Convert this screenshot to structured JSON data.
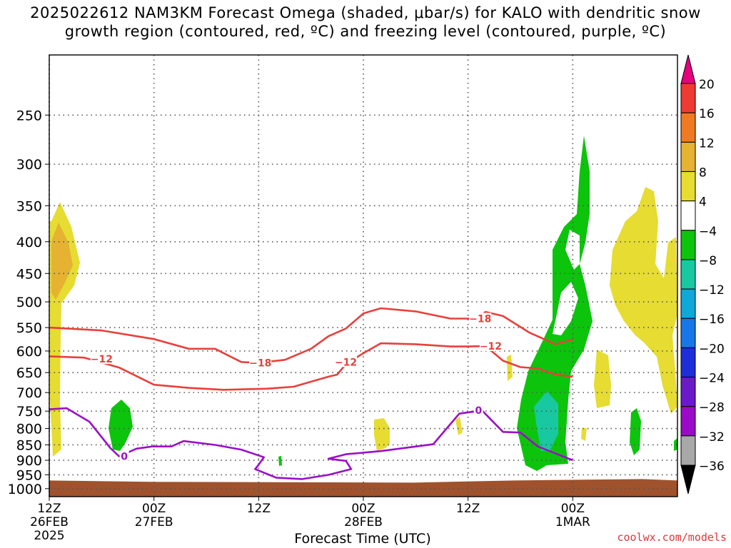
{
  "header": {
    "title_line1": "2025022612 NAM3KM Forecast Omega (shaded, μbar/s) for KALO with dendritic snow",
    "title_line2": "growth region (contoured, red, ºC) and freezing level (contoured, purple, ºC)"
  },
  "footer": {
    "credit": "coolwx.com/models"
  },
  "chart_data": {
    "type": "heatmap",
    "title": "2025022612 NAM3KM Forecast Omega (shaded, μbar/s) for KALO with dendritic snow growth region (contoured, red, ºC) and freezing level (contoured, purple, ºC)",
    "xlabel": "Forecast Time (UTC)",
    "ylabel": "",
    "x_unit": "forecast hour",
    "xlim": [
      0,
      36
    ],
    "ylim": [
      1030,
      200
    ],
    "y_scale": "log",
    "x_ticks": [
      {
        "x": 0,
        "line1": "12Z",
        "line2": "26FEB",
        "line3": "2025"
      },
      {
        "x": 6,
        "line1": "00Z",
        "line2": "27FEB",
        "line3": ""
      },
      {
        "x": 12,
        "line1": "12Z",
        "line2": "",
        "line3": ""
      },
      {
        "x": 18,
        "line1": "00Z",
        "line2": "28FEB",
        "line3": ""
      },
      {
        "x": 24,
        "line1": "12Z",
        "line2": "",
        "line3": ""
      },
      {
        "x": 30,
        "line1": "00Z",
        "line2": "1MAR",
        "line3": ""
      }
    ],
    "y_ticks": [
      250,
      300,
      350,
      400,
      450,
      500,
      550,
      600,
      650,
      700,
      750,
      800,
      850,
      900,
      950,
      1000
    ],
    "grid": true,
    "colorbar": {
      "labels": [
        "20",
        "16",
        "12",
        "8",
        "4",
        "−4",
        "−8",
        "−12",
        "−16",
        "−20",
        "−24",
        "−28",
        "−32",
        "−36"
      ],
      "bands": [
        {
          "color": "#e6007e"
        },
        {
          "color": "#ee3a32"
        },
        {
          "color": "#f07a22"
        },
        {
          "color": "#e5b232"
        },
        {
          "color": "#e6dc32"
        },
        {
          "color": "#ffffff"
        },
        {
          "color": "#0cc40c"
        },
        {
          "color": "#18c8a0"
        },
        {
          "color": "#10a8d8"
        },
        {
          "color": "#1877e8"
        },
        {
          "color": "#1e2ed8"
        },
        {
          "color": "#6a1ac8"
        },
        {
          "color": "#9a0ac8"
        },
        {
          "color": "#a8a8a8"
        },
        {
          "color": "#000000"
        }
      ]
    },
    "terrain": {
      "color": "#a0522d",
      "surface_pressure": 970
    },
    "contours": [
      {
        "name": "-18",
        "color": "#e8403c",
        "label": "−18",
        "label_at": [
          12.1
        ],
        "points": [
          [
            0,
            550
          ],
          [
            3,
            556
          ],
          [
            6,
            574
          ],
          [
            8,
            595
          ],
          [
            9.5,
            595
          ],
          [
            11,
            625
          ],
          [
            12,
            627
          ],
          [
            13.5,
            620
          ],
          [
            15,
            595
          ],
          [
            16,
            568
          ],
          [
            17,
            552
          ],
          [
            18,
            522
          ],
          [
            19,
            512
          ],
          [
            21,
            518
          ],
          [
            23,
            532
          ],
          [
            24.5,
            532
          ],
          [
            25,
            519
          ],
          [
            26,
            527
          ],
          [
            27.5,
            560
          ],
          [
            29,
            585
          ],
          [
            30,
            575
          ]
        ],
        "labels": [
          {
            "text": "−18",
            "at": [
              12.1,
              627
            ]
          },
          {
            "text": "−18",
            "at": [
              24.7,
              532
            ]
          }
        ]
      },
      {
        "name": "-12",
        "color": "#e8403c",
        "points": [
          [
            0,
            612
          ],
          [
            2,
            615
          ],
          [
            4,
            638
          ],
          [
            6,
            680
          ],
          [
            8,
            688
          ],
          [
            10,
            693
          ],
          [
            12.5,
            690
          ],
          [
            14,
            685
          ],
          [
            16,
            660
          ],
          [
            16.5,
            655
          ],
          [
            17,
            630
          ],
          [
            18,
            605
          ],
          [
            19,
            583
          ],
          [
            21,
            585
          ],
          [
            23,
            590
          ],
          [
            24,
            590
          ],
          [
            25,
            589
          ],
          [
            26,
            622
          ],
          [
            27,
            637
          ],
          [
            28,
            640
          ],
          [
            29,
            655
          ],
          [
            30,
            660
          ]
        ],
        "labels": [
          {
            "text": "−12",
            "at": [
              3,
              618
            ]
          },
          {
            "text": "−12",
            "at": [
              17,
              625
            ]
          },
          {
            "text": "−12",
            "at": [
              25.3,
              589
            ]
          }
        ]
      },
      {
        "name": "0",
        "color": "#9a10c8",
        "points": [
          [
            0,
            745
          ],
          [
            1,
            742
          ],
          [
            2.3,
            780
          ],
          [
            3.5,
            860
          ],
          [
            4,
            887
          ],
          [
            5,
            862
          ],
          [
            5.9,
            855
          ],
          [
            7,
            855
          ],
          [
            7.7,
            838
          ],
          [
            9.5,
            850
          ],
          [
            11,
            865
          ],
          [
            12.3,
            890
          ],
          [
            12,
            915
          ],
          [
            11.8,
            930
          ],
          [
            13,
            960
          ],
          [
            14.5,
            965
          ],
          [
            16,
            950
          ],
          [
            17.3,
            930
          ],
          [
            17,
            902
          ],
          [
            16,
            895
          ],
          [
            17,
            880
          ],
          [
            19,
            870
          ],
          [
            22,
            848
          ],
          [
            23.5,
            757
          ],
          [
            24.8,
            748
          ],
          [
            26,
            810
          ],
          [
            27,
            812
          ],
          [
            28,
            855
          ],
          [
            30,
            900
          ]
        ],
        "labels": [
          {
            "text": "0",
            "at": [
              4.3,
              887
            ]
          },
          {
            "text": "0",
            "at": [
              24.6,
              748
            ]
          }
        ]
      }
    ],
    "omega_regions": [
      {
        "class": "4 to 8",
        "color": "#e6dc32"
      },
      {
        "class": "8 to 12",
        "color": "#e5b232"
      },
      {
        "class": "-4 to -8",
        "color": "#0cc40c"
      },
      {
        "class": "-8 to -12",
        "color": "#18c8a0"
      }
    ]
  }
}
